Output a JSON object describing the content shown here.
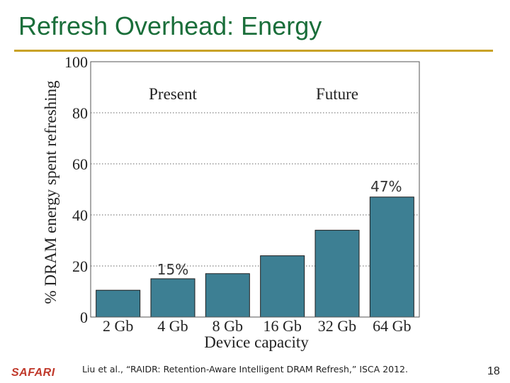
{
  "slide": {
    "title": "Refresh Overhead: Energy",
    "citation": "Liu et al., “RAIDR: Retention-Aware Intelligent DRAM Refresh,” ISCA 2012.",
    "page_number": "18",
    "brand": "SAFARI"
  },
  "colors": {
    "title": "#1a6e3a",
    "rule": "#c9a227",
    "bar": "#3d7f93",
    "brand": "#c0392b"
  },
  "chart_data": {
    "type": "bar",
    "title": "",
    "xlabel": "Device capacity",
    "ylabel": "% DRAM energy spent refreshing",
    "categories": [
      "2 Gb",
      "4 Gb",
      "8 Gb",
      "16 Gb",
      "32 Gb",
      "64 Gb"
    ],
    "values": [
      10.5,
      15,
      17,
      24,
      34,
      47
    ],
    "ylim": [
      0,
      100
    ],
    "yticks": [
      0,
      20,
      40,
      60,
      80,
      100
    ],
    "grid": "dotted horizontal",
    "annotations": {
      "present": "Present",
      "future": "Future",
      "callout_4gb": "15%",
      "callout_64gb": "47%"
    }
  }
}
